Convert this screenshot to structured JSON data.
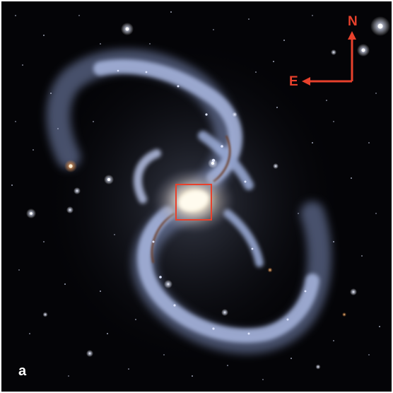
{
  "figure": {
    "panel_label": "a",
    "compass": {
      "north_label": "N",
      "east_label": "E"
    },
    "colors": {
      "annotation": "#e8412c",
      "background": "#040407",
      "label": "#ffffff",
      "arm_blue": "#8fa6d6",
      "core": "#fff6dc",
      "dust": "#6b3a22"
    },
    "icons": [
      "compass-arrow-icon",
      "zoom-box-icon"
    ]
  }
}
